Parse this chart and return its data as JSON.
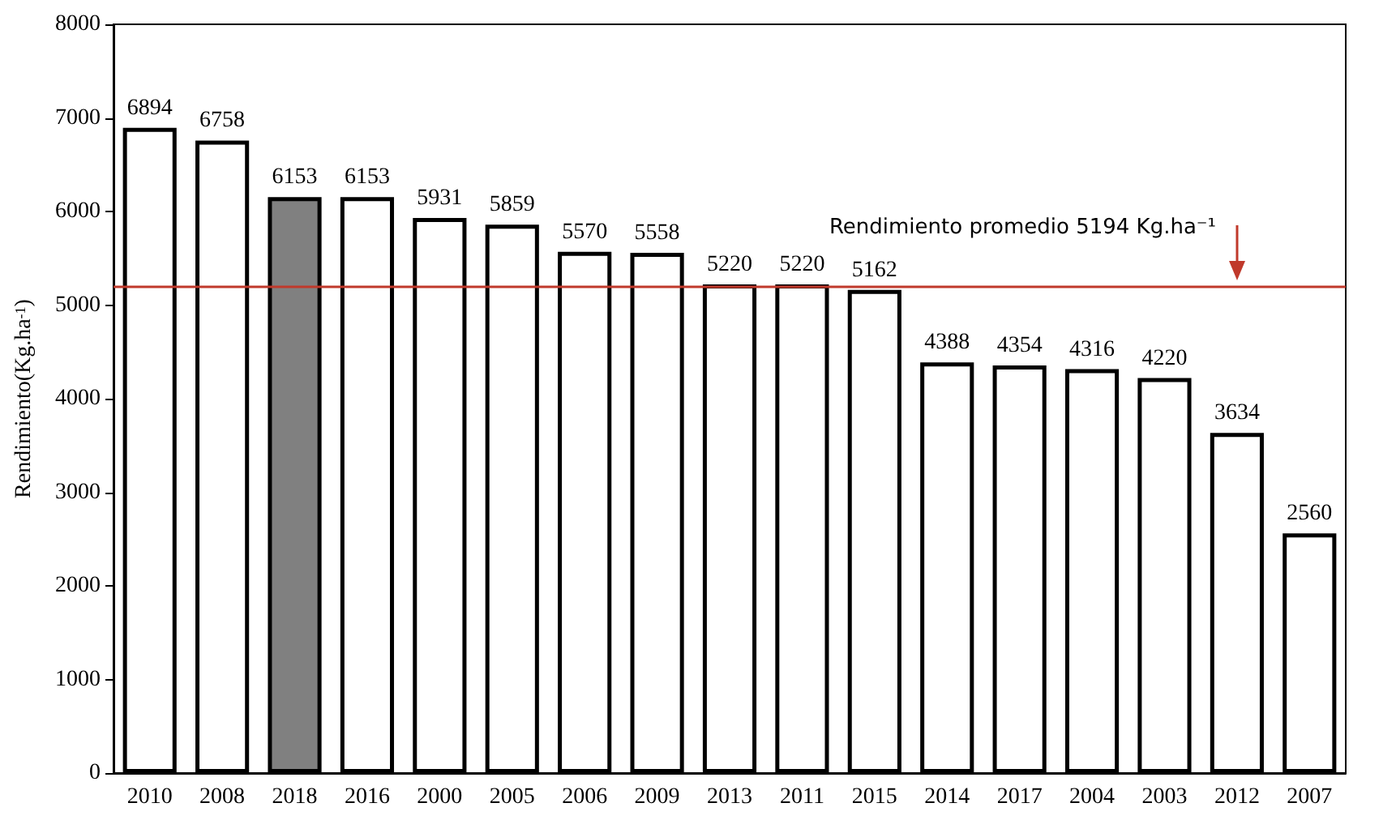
{
  "chart_data": {
    "type": "bar",
    "ylabel": "Rendimiento(Kg.ha$^{-1}$)",
    "categories": [
      "2010",
      "2008",
      "2018",
      "2016",
      "2000",
      "2005",
      "2006",
      "2009",
      "2013",
      "2011",
      "2015",
      "2014",
      "2017",
      "2004",
      "2003",
      "2012",
      "2007"
    ],
    "values": [
      6894,
      6758,
      6153,
      6153,
      5931,
      5859,
      5570,
      5558,
      5220,
      5220,
      5162,
      4388,
      4354,
      4316,
      4220,
      3634,
      2560
    ],
    "colors": [
      "#ffffff",
      "#ffffff",
      "#808080",
      "#ffffff",
      "#ffffff",
      "#ffffff",
      "#ffffff",
      "#ffffff",
      "#ffffff",
      "#ffffff",
      "#ffffff",
      "#ffffff",
      "#ffffff",
      "#ffffff",
      "#ffffff",
      "#ffffff",
      "#ffffff"
    ],
    "ylim": [
      0,
      8000
    ],
    "yticks": [
      0,
      1000,
      2000,
      3000,
      4000,
      5000,
      6000,
      7000,
      8000
    ],
    "data_labels": true,
    "grid": false,
    "ref_lines": [
      {
        "axis": "y",
        "value": 5194,
        "label": "Rendimiento promedio 5194 Kg.ha⁻¹",
        "color": "#c0392b"
      }
    ]
  }
}
